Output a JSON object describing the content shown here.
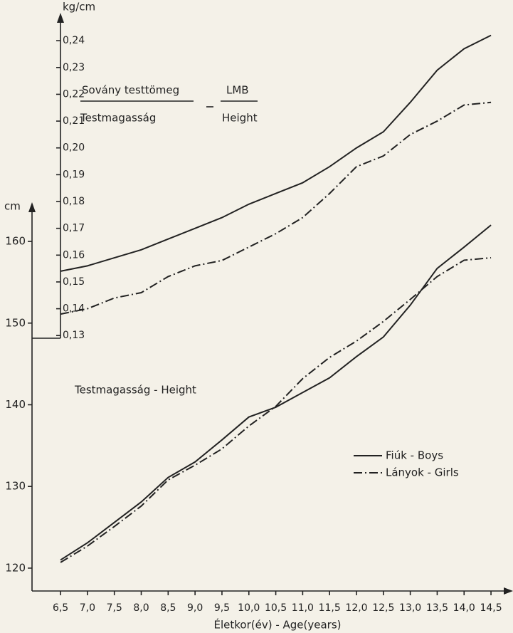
{
  "chart_data": [
    {
      "type": "line",
      "x_label": "Életkor(év) - Age(years)",
      "y_label": "cm",
      "annotation": "Testmagasság - Height",
      "x": [
        6.5,
        7.0,
        7.5,
        8.0,
        8.5,
        9.0,
        9.5,
        10.0,
        10.5,
        11.0,
        11.5,
        12.0,
        12.5,
        13.0,
        13.5,
        14.0,
        14.5
      ],
      "xlim": [
        5.97,
        14.79
      ],
      "xticks": [
        {
          "value": 6.5,
          "label": "6,5"
        },
        {
          "value": 7.0,
          "label": "7,0"
        },
        {
          "value": 7.5,
          "label": "7,5"
        },
        {
          "value": 8.0,
          "label": "8,0"
        },
        {
          "value": 8.5,
          "label": "8,5"
        },
        {
          "value": 9.0,
          "label": "9,0"
        },
        {
          "value": 9.5,
          "label": "9,5"
        },
        {
          "value": 10.0,
          "label": "10,0"
        },
        {
          "value": 10.5,
          "label": "10,5"
        },
        {
          "value": 11.0,
          "label": "11,0"
        },
        {
          "value": 11.5,
          "label": "11,5"
        },
        {
          "value": 12.0,
          "label": "12,0"
        },
        {
          "value": 12.5,
          "label": "12,5"
        },
        {
          "value": 13.0,
          "label": "13,0"
        },
        {
          "value": 13.5,
          "label": "13,5"
        },
        {
          "value": 14.0,
          "label": "14,0"
        },
        {
          "value": 14.5,
          "label": "14,5"
        }
      ],
      "ylim": [
        117.2,
        164.8
      ],
      "yticks": [
        120,
        130,
        140,
        150,
        160
      ],
      "legend": "lower right",
      "series": [
        {
          "name": "Fiúk - Boys",
          "color": "#222222",
          "dash": "solid",
          "values": [
            121.0,
            123.1,
            125.6,
            128.1,
            131.1,
            133.0,
            135.7,
            138.5,
            139.7,
            141.5,
            143.3,
            145.9,
            148.3,
            152.2,
            156.7,
            159.3,
            162.0
          ]
        },
        {
          "name": "Lányok - Girls",
          "color": "#222222",
          "dash": "dashdot",
          "values": [
            120.7,
            122.7,
            125.1,
            127.6,
            130.8,
            132.6,
            134.6,
            137.4,
            139.8,
            143.2,
            145.8,
            147.8,
            150.2,
            152.9,
            155.7,
            157.7,
            158.0
          ]
        }
      ]
    },
    {
      "type": "line",
      "y_label": "kg/cm",
      "formula": {
        "numerator": "Sovány testtömeg",
        "denominator": "Testmagasság",
        "numerator_en": "LMB",
        "denominator_en": "Height"
      },
      "x": [
        6.5,
        7.0,
        7.5,
        8.0,
        8.5,
        9.0,
        9.5,
        10.0,
        10.5,
        11.0,
        11.5,
        12.0,
        12.5,
        13.0,
        13.5,
        14.0,
        14.5
      ],
      "xlim": [
        5.97,
        14.79
      ],
      "ylim": [
        0.129,
        0.2504
      ],
      "yticks": [
        {
          "value": 0.13,
          "label": "0,13"
        },
        {
          "value": 0.14,
          "label": "0,14"
        },
        {
          "value": 0.15,
          "label": "0,15"
        },
        {
          "value": 0.16,
          "label": "0,16"
        },
        {
          "value": 0.17,
          "label": "0,17"
        },
        {
          "value": 0.18,
          "label": "0,18"
        },
        {
          "value": 0.19,
          "label": "0,19"
        },
        {
          "value": 0.2,
          "label": "0,20"
        },
        {
          "value": 0.21,
          "label": "0,21"
        },
        {
          "value": 0.22,
          "label": "0,22"
        },
        {
          "value": 0.23,
          "label": "0,23"
        },
        {
          "value": 0.24,
          "label": "0,24"
        }
      ],
      "series": [
        {
          "name": "Fiúk - Boys",
          "color": "#222222",
          "dash": "solid",
          "values": [
            0.154,
            0.156,
            0.159,
            0.162,
            0.166,
            0.17,
            0.174,
            0.179,
            0.183,
            0.187,
            0.193,
            0.2,
            0.206,
            0.217,
            0.229,
            0.237,
            0.242
          ]
        },
        {
          "name": "Lányok - Girls",
          "color": "#222222",
          "dash": "dashdot",
          "values": [
            0.138,
            0.14,
            0.144,
            0.146,
            0.152,
            0.156,
            0.158,
            0.163,
            0.168,
            0.174,
            0.183,
            0.193,
            0.197,
            0.205,
            0.21,
            0.216,
            0.217
          ]
        }
      ]
    }
  ]
}
